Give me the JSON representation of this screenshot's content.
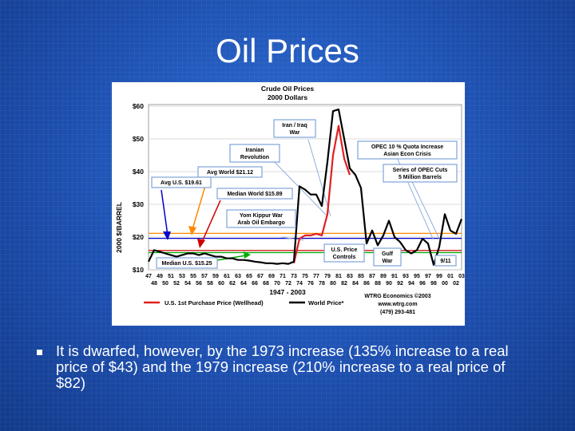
{
  "slide": {
    "title": "Oil Prices",
    "bullets": [
      "It is dwarfed, however, by the 1973 increase (135% increase to a real price of $43) and the 1979 increase (210% increase to a real price of $82)"
    ]
  },
  "colors": {
    "background": "#1d4fb0",
    "us_price_line": "#e02020",
    "world_price_line": "#000000",
    "reference_lines": [
      "#0000cc",
      "#cc0000",
      "#ff8800",
      "#00aa00"
    ]
  },
  "chart_data": {
    "type": "line",
    "title": "Crude Oil Prices",
    "subtitle": "2000 Dollars",
    "ylabel": "2000 $/BARREL",
    "xlabel": "1947 - 2003",
    "ylim": [
      10,
      60
    ],
    "xlim": [
      1947,
      2003
    ],
    "yticks": [
      "$10",
      "$20",
      "$30",
      "$40",
      "$50",
      "$60"
    ],
    "xticks_top": [
      "47",
      "49",
      "51",
      "53",
      "55",
      "57",
      "59",
      "61",
      "63",
      "65",
      "67",
      "69",
      "71",
      "73",
      "75",
      "77",
      "79",
      "81",
      "83",
      "85",
      "87",
      "89",
      "91",
      "93",
      "95",
      "97",
      "99",
      "01",
      "03"
    ],
    "xticks_bottom": [
      "48",
      "50",
      "52",
      "54",
      "56",
      "58",
      "60",
      "62",
      "64",
      "66",
      "68",
      "70",
      "72",
      "74",
      "76",
      "78",
      "80",
      "82",
      "84",
      "86",
      "88",
      "90",
      "92",
      "94",
      "96",
      "98",
      "00",
      "02"
    ],
    "series": [
      {
        "name": "U.S. 1st Purchase Price (Wellhead)",
        "color": "#e02020",
        "x": [
          1973,
          1974,
          1975,
          1976,
          1977,
          1978,
          1979,
          1980,
          1981,
          1982,
          1983
        ],
        "y": [
          12,
          19.5,
          20.5,
          20.5,
          21,
          20.5,
          27,
          45,
          54,
          44,
          39
        ]
      },
      {
        "name": "World Price*",
        "color": "#000000",
        "x": [
          1947,
          1948,
          1949,
          1950,
          1951,
          1952,
          1953,
          1954,
          1955,
          1956,
          1957,
          1958,
          1959,
          1960,
          1961,
          1962,
          1963,
          1964,
          1965,
          1966,
          1967,
          1968,
          1969,
          1970,
          1971,
          1972,
          1973,
          1974,
          1975,
          1976,
          1977,
          1978,
          1979,
          1980,
          1981,
          1982,
          1983,
          1984,
          1985,
          1986,
          1987,
          1988,
          1989,
          1990,
          1991,
          1992,
          1993,
          1994,
          1995,
          1996,
          1997,
          1998,
          1999,
          2000,
          2001,
          2002,
          2003
        ],
        "y": [
          12.5,
          16,
          15.5,
          15,
          14.5,
          14,
          14.5,
          15,
          15,
          14.5,
          15,
          14.5,
          14,
          14,
          13.5,
          13.5,
          13,
          13,
          12.8,
          12.5,
          12.3,
          12,
          12,
          11.8,
          12,
          11.8,
          12.5,
          35.5,
          34.5,
          33,
          33,
          29.5,
          43,
          58.5,
          59,
          50,
          41,
          39,
          35,
          18,
          22,
          17.5,
          20.5,
          25,
          20,
          18.5,
          16,
          15,
          16,
          19.5,
          18,
          11.5,
          17,
          27,
          22,
          21,
          25.5
        ]
      }
    ],
    "reference_lines": [
      {
        "label": "Avg U.S. $19.61",
        "y": 19.61,
        "color": "#0000cc"
      },
      {
        "label": "Avg World $21.12",
        "y": 21.12,
        "color": "#ff8800"
      },
      {
        "label": "Median World $15.89",
        "y": 15.89,
        "color": "#cc0000"
      },
      {
        "label": "Median U.S. $15.25",
        "y": 15.25,
        "color": "#00aa00"
      }
    ],
    "annotations": [
      "Iran / Iraq War",
      "Iranian Revolution",
      "OPEC 10 % Quota Increase Asian Econ Crisis",
      "Series of OPEC Cuts 5 Million Barrels",
      "Avg World $21.12",
      "Avg U.S. $19.61",
      "Median World $15.89",
      "Yom Kippur War Arab Oil Embargo",
      "U.S. Price Controls",
      "Gulf War",
      "9/11",
      "Median U.S. $15.25"
    ],
    "legend": [
      "U.S. 1st Purchase Price (Wellhead)",
      "World Price*"
    ],
    "source": [
      "WTRG Economics ©2003",
      "www.wtrg.com",
      "(479) 293-481"
    ]
  }
}
